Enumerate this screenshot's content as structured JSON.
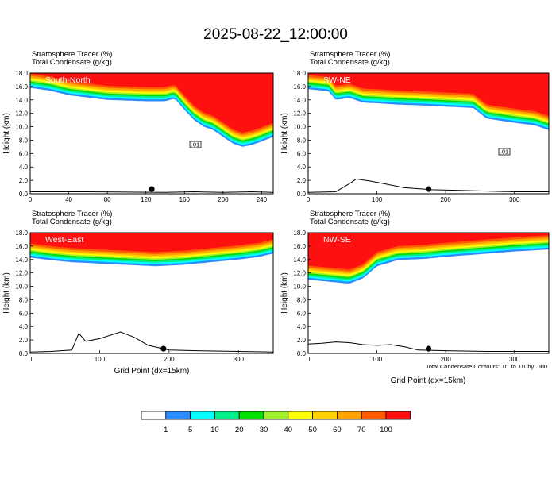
{
  "figure": {
    "title": "2025-08-22_12:00:00",
    "footnote": "Total Condensate Contours: .01 to .01 by .000",
    "xlabel": "Grid Point (dx=15km)",
    "ylabel": "Height (km)"
  },
  "colors": {
    "levels": [
      "#ffffff",
      "#2a8cff",
      "#00ffff",
      "#00ee88",
      "#00dd00",
      "#a0ee30",
      "#ffff00",
      "#ffd000",
      "#ffa200",
      "#ff5a00",
      "#ff1010"
    ],
    "outline": "#000000"
  },
  "colorbar": {
    "labels": [
      "1",
      "5",
      "10",
      "20",
      "30",
      "40",
      "50",
      "60",
      "70",
      "100"
    ]
  },
  "chart_data": [
    {
      "type": "heatmap",
      "panel": "South-North",
      "header_line1": "Stratosphere Tracer   (%)",
      "header_line2": "Total Condensate   (g/kg)",
      "xlim": [
        0,
        252
      ],
      "ylim": [
        0,
        18
      ],
      "xticks": [
        "0",
        "40",
        "80",
        "120",
        "160",
        "200",
        "240"
      ],
      "yticks": [
        "0.0",
        "2.0",
        "4.0",
        "6.0",
        "8.0",
        "10.0",
        "12.0",
        "14.0",
        "16.0",
        "18.0"
      ],
      "tracer_boundary_km": [
        [
          0,
          15.8
        ],
        [
          20,
          15.4
        ],
        [
          40,
          14.7
        ],
        [
          80,
          14.0
        ],
        [
          120,
          13.8
        ],
        [
          140,
          13.8
        ],
        [
          150,
          14.2
        ],
        [
          160,
          12.5
        ],
        [
          170,
          11.0
        ],
        [
          180,
          10.0
        ],
        [
          190,
          9.5
        ],
        [
          200,
          8.5
        ],
        [
          210,
          7.5
        ],
        [
          220,
          7.0
        ],
        [
          230,
          7.3
        ],
        [
          240,
          7.8
        ],
        [
          252,
          8.5
        ]
      ],
      "terrain_km": [
        [
          0,
          0.3
        ],
        [
          30,
          0.3
        ],
        [
          60,
          0.3
        ],
        [
          100,
          0.25
        ],
        [
          140,
          0.2
        ],
        [
          170,
          0.3
        ],
        [
          200,
          0.2
        ],
        [
          230,
          0.3
        ],
        [
          252,
          0.2
        ]
      ],
      "contour_label": ".01",
      "marker_x": 126
    },
    {
      "type": "heatmap",
      "panel": "SW-NE",
      "header_line1": "Stratosphere Tracer   (%)",
      "header_line2": "Total Condensate   (g/kg)",
      "xlim": [
        0,
        350
      ],
      "ylim": [
        0,
        18
      ],
      "xticks": [
        "0",
        "100",
        "200",
        "300"
      ],
      "yticks": [
        "0.0",
        "2.0",
        "4.0",
        "6.0",
        "8.0",
        "10.0",
        "12.0",
        "14.0",
        "16.0",
        "18.0"
      ],
      "tracer_boundary_km": [
        [
          0,
          15.6
        ],
        [
          30,
          15.3
        ],
        [
          40,
          14.0
        ],
        [
          60,
          14.3
        ],
        [
          80,
          13.6
        ],
        [
          100,
          13.5
        ],
        [
          130,
          13.3
        ],
        [
          160,
          13.2
        ],
        [
          200,
          13.0
        ],
        [
          240,
          12.8
        ],
        [
          260,
          11.2
        ],
        [
          300,
          10.6
        ],
        [
          330,
          10.2
        ],
        [
          350,
          9.5
        ]
      ],
      "terrain_km": [
        [
          0,
          0.2
        ],
        [
          40,
          0.3
        ],
        [
          60,
          1.5
        ],
        [
          70,
          2.2
        ],
        [
          90,
          1.9
        ],
        [
          110,
          1.5
        ],
        [
          140,
          0.9
        ],
        [
          180,
          0.6
        ],
        [
          220,
          0.5
        ],
        [
          260,
          0.4
        ],
        [
          300,
          0.3
        ],
        [
          350,
          0.3
        ]
      ],
      "contour_label": ".01",
      "marker_x": 175
    },
    {
      "type": "heatmap",
      "panel": "West-East",
      "header_line1": "Stratosphere Tracer   (%)",
      "header_line2": "Total Condensate   (g/kg)",
      "xlim": [
        0,
        350
      ],
      "ylim": [
        0,
        18
      ],
      "xticks": [
        "0",
        "100",
        "200",
        "300"
      ],
      "yticks": [
        "0.0",
        "2.0",
        "4.0",
        "6.0",
        "8.0",
        "10.0",
        "12.0",
        "14.0",
        "16.0",
        "18.0"
      ],
      "tracer_boundary_km": [
        [
          0,
          14.3
        ],
        [
          30,
          13.9
        ],
        [
          60,
          13.6
        ],
        [
          100,
          13.4
        ],
        [
          140,
          13.2
        ],
        [
          180,
          13.0
        ],
        [
          220,
          13.2
        ],
        [
          260,
          13.6
        ],
        [
          300,
          14.0
        ],
        [
          330,
          14.4
        ],
        [
          350,
          14.9
        ]
      ],
      "terrain_km": [
        [
          0,
          0.2
        ],
        [
          30,
          0.3
        ],
        [
          60,
          0.5
        ],
        [
          70,
          3.0
        ],
        [
          80,
          1.8
        ],
        [
          100,
          2.2
        ],
        [
          130,
          3.2
        ],
        [
          150,
          2.4
        ],
        [
          170,
          1.2
        ],
        [
          200,
          0.5
        ],
        [
          240,
          0.4
        ],
        [
          300,
          0.3
        ],
        [
          350,
          0.2
        ]
      ],
      "contour_label": "",
      "marker_x": 192
    },
    {
      "type": "heatmap",
      "panel": "NW-SE",
      "header_line1": "Stratosphere Tracer   (%)",
      "header_line2": "Total Condensate   (g/kg)",
      "xlim": [
        0,
        350
      ],
      "ylim": [
        0,
        18
      ],
      "xticks": [
        "0",
        "100",
        "200",
        "300"
      ],
      "yticks": [
        "0.0",
        "2.0",
        "4.0",
        "6.0",
        "8.0",
        "10.0",
        "12.0",
        "14.0",
        "16.0",
        "18.0"
      ],
      "tracer_boundary_km": [
        [
          0,
          11.0
        ],
        [
          30,
          10.7
        ],
        [
          60,
          10.4
        ],
        [
          80,
          11.2
        ],
        [
          100,
          13.0
        ],
        [
          130,
          13.9
        ],
        [
          170,
          14.1
        ],
        [
          200,
          14.4
        ],
        [
          250,
          14.8
        ],
        [
          300,
          15.2
        ],
        [
          350,
          15.5
        ]
      ],
      "terrain_km": [
        [
          0,
          1.4
        ],
        [
          20,
          1.5
        ],
        [
          40,
          1.7
        ],
        [
          60,
          1.6
        ],
        [
          80,
          1.3
        ],
        [
          100,
          1.2
        ],
        [
          120,
          1.3
        ],
        [
          140,
          1.0
        ],
        [
          160,
          0.5
        ],
        [
          200,
          0.4
        ],
        [
          260,
          0.3
        ],
        [
          350,
          0.3
        ]
      ],
      "contour_label": "",
      "marker_x": 175
    }
  ]
}
